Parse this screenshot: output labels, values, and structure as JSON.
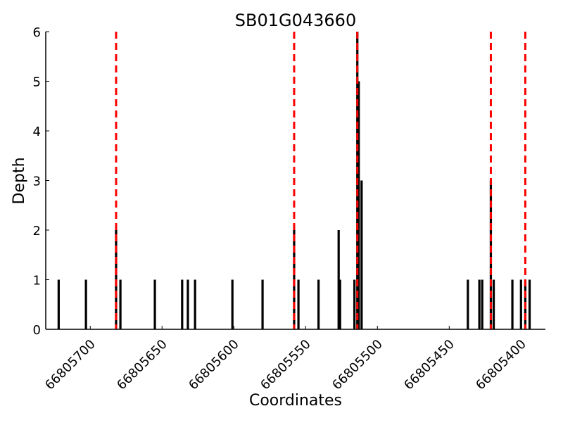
{
  "chart_data": {
    "type": "bar",
    "title": "SB01G043660",
    "xlabel": "Coordinates",
    "ylabel": "Depth",
    "xlim": [
      66805731,
      66805383
    ],
    "ylim": [
      0,
      6
    ],
    "x_reversed": true,
    "grid": false,
    "xticks": [
      66805700,
      66805650,
      66805600,
      66805550,
      66805500,
      66805450,
      66805400
    ],
    "yticks": [
      0,
      1,
      2,
      3,
      4,
      5,
      6
    ],
    "bars": {
      "x": [
        66805722,
        66805703,
        66805682,
        66805679,
        66805655,
        66805636,
        66805632,
        66805627,
        66805601,
        66805580,
        66805558,
        66805555,
        66805541,
        66805527,
        66805526,
        66805516,
        66805514,
        66805513,
        66805511,
        66805437,
        66805429,
        66805427,
        66805421,
        66805419,
        66805406,
        66805400,
        66805397,
        66805394
      ],
      "values": [
        1,
        1,
        2,
        1,
        1,
        1,
        1,
        1,
        1,
        1,
        2,
        1,
        1,
        2,
        1,
        1,
        6,
        5,
        3,
        1,
        1,
        1,
        3,
        1,
        1,
        1,
        1,
        1
      ],
      "color": "#000000"
    },
    "vlines": {
      "x": [
        66805682,
        66805558,
        66805514,
        66805421,
        66805397
      ],
      "color": "#ff0000",
      "style": "dashed"
    }
  }
}
